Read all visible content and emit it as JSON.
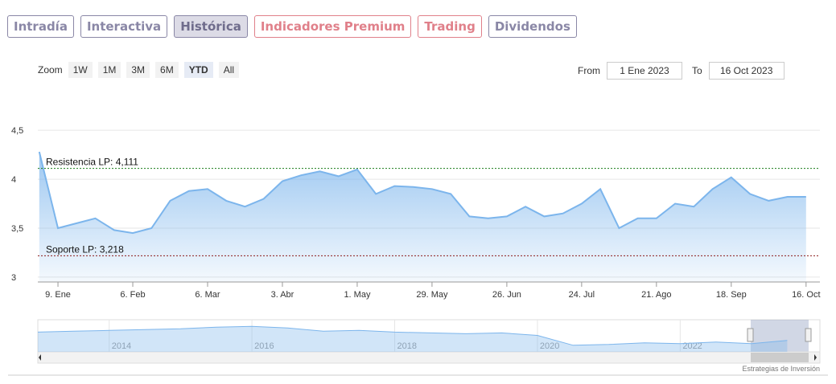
{
  "tabs": [
    {
      "label": "Intradía",
      "color": "#8a87a6"
    },
    {
      "label": "Interactiva",
      "color": "#8a87a6"
    },
    {
      "label": "Histórica",
      "color": "#8a87a6",
      "active": true
    },
    {
      "label": "Indicadores Premium",
      "color": "#e0808a"
    },
    {
      "label": "Trading",
      "color": "#e0808a"
    },
    {
      "label": "Dividendos",
      "color": "#8a87a6"
    }
  ],
  "zoom": {
    "label": "Zoom",
    "buttons": [
      {
        "label": "1W"
      },
      {
        "label": "1M"
      },
      {
        "label": "3M"
      },
      {
        "label": "6M"
      },
      {
        "label": "YTD",
        "selected": true
      },
      {
        "label": "All"
      }
    ]
  },
  "range": {
    "from_label": "From",
    "from": "1 Ene 2023",
    "to_label": "To",
    "to": "16 Oct 2023"
  },
  "credits": "Estrategias de Inversión",
  "chart_data": {
    "type": "area",
    "color": "#7cb5ec",
    "categories": [
      null,
      "9. Ene",
      null,
      null,
      null,
      "6. Feb",
      null,
      null,
      null,
      "6. Mar",
      null,
      null,
      null,
      "3. Abr",
      null,
      null,
      null,
      "1. May",
      null,
      null,
      null,
      "29. May",
      null,
      null,
      null,
      "26. Jun",
      null,
      null,
      null,
      "24. Jul",
      null,
      null,
      null,
      "21. Ago",
      null,
      null,
      null,
      "18. Sep",
      null,
      null,
      null,
      "16. Oct"
    ],
    "values": [
      4.28,
      3.5,
      3.55,
      3.6,
      3.48,
      3.45,
      3.5,
      3.78,
      3.88,
      3.9,
      3.78,
      3.72,
      3.8,
      3.98,
      4.04,
      4.08,
      4.03,
      4.1,
      3.85,
      3.93,
      3.92,
      3.9,
      3.85,
      3.62,
      3.6,
      3.62,
      3.72,
      3.62,
      3.65,
      3.75,
      3.9,
      3.5,
      3.6,
      3.6,
      3.75,
      3.72,
      3.9,
      4.02,
      3.85,
      3.78,
      3.82,
      3.82
    ],
    "ylim": [
      2.95,
      4.6
    ],
    "yticks": [
      {
        "value": 3,
        "label": "3"
      },
      {
        "value": 3.5,
        "label": "3,5"
      },
      {
        "value": 4,
        "label": "4"
      },
      {
        "value": 4.5,
        "label": "4,5"
      }
    ],
    "grid": true,
    "reference_lines": [
      {
        "label": "Resistencia LP: 4,111",
        "value": 4.111,
        "color": "#1a7d1a"
      },
      {
        "label": "Soporte LP: 3,218",
        "value": 3.218,
        "color": "#8b1a1a"
      }
    ],
    "navigator": {
      "x": [
        2013,
        2013.5,
        2014,
        2014.5,
        2015,
        2015.5,
        2016,
        2016.5,
        2017,
        2017.5,
        2018,
        2018.5,
        2019,
        2019.5,
        2020,
        2020.5,
        2021,
        2021.5,
        2022,
        2022.5,
        2023,
        2023.5
      ],
      "values": [
        4.2,
        4.3,
        4.4,
        4.5,
        4.6,
        4.8,
        4.9,
        4.7,
        4.3,
        4.4,
        4.2,
        4.1,
        4.0,
        4.1,
        3.8,
        2.6,
        2.7,
        2.9,
        2.8,
        3.0,
        2.8,
        3.2
      ],
      "xlim": [
        2013,
        2023.8
      ],
      "ylim": [
        2,
        5.5
      ],
      "xticks": [
        2014,
        2016,
        2018,
        2020,
        2022
      ]
    }
  }
}
